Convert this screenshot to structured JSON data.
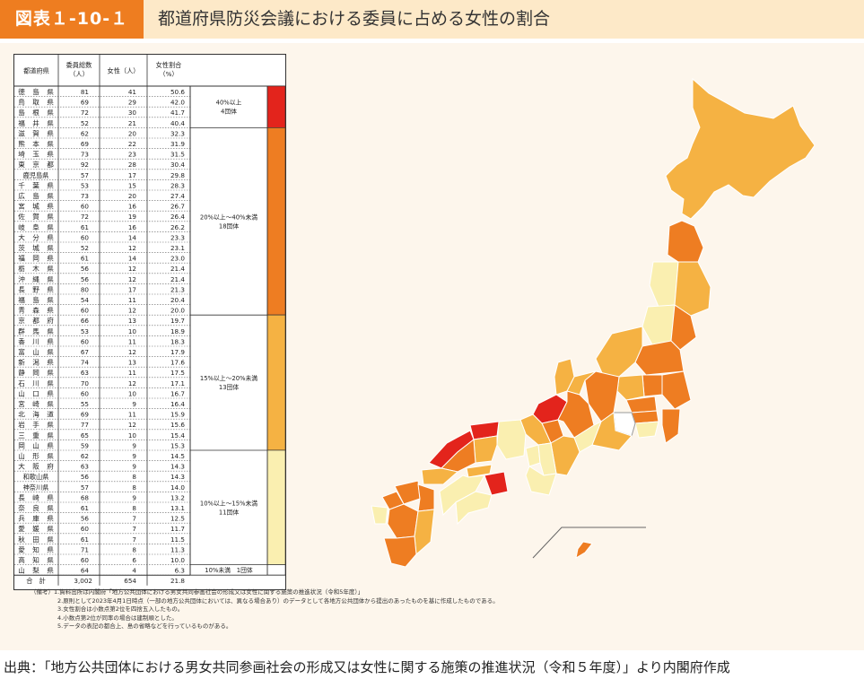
{
  "figure": {
    "label": "図表１-10-１",
    "title": "都道府県防災会議における委員に占める女性の割合"
  },
  "table": {
    "headers": [
      "都道府県",
      "委員総数\n（人）",
      "女性（人）",
      "女性割合\n（%）"
    ],
    "rows": [
      [
        "徳島県",
        "81",
        "41",
        "50.6"
      ],
      [
        "鳥取県",
        "69",
        "29",
        "42.0"
      ],
      [
        "島根県",
        "72",
        "30",
        "41.7"
      ],
      [
        "福井県",
        "52",
        "21",
        "40.4"
      ],
      [
        "滋賀県",
        "62",
        "20",
        "32.3"
      ],
      [
        "熊本県",
        "69",
        "22",
        "31.9"
      ],
      [
        "埼玉県",
        "73",
        "23",
        "31.5"
      ],
      [
        "東京都",
        "92",
        "28",
        "30.4"
      ],
      [
        "鹿児島県",
        "57",
        "17",
        "29.8"
      ],
      [
        "千葉県",
        "53",
        "15",
        "28.3"
      ],
      [
        "広島県",
        "73",
        "20",
        "27.4"
      ],
      [
        "宮城県",
        "60",
        "16",
        "26.7"
      ],
      [
        "佐賀県",
        "72",
        "19",
        "26.4"
      ],
      [
        "岐阜県",
        "61",
        "16",
        "26.2"
      ],
      [
        "大分県",
        "60",
        "14",
        "23.3"
      ],
      [
        "茨城県",
        "52",
        "12",
        "23.1"
      ],
      [
        "福岡県",
        "61",
        "14",
        "23.0"
      ],
      [
        "栃木県",
        "56",
        "12",
        "21.4"
      ],
      [
        "沖縄県",
        "56",
        "12",
        "21.4"
      ],
      [
        "長野県",
        "80",
        "17",
        "21.3"
      ],
      [
        "福島県",
        "54",
        "11",
        "20.4"
      ],
      [
        "青森県",
        "60",
        "12",
        "20.0"
      ],
      [
        "京都府",
        "66",
        "13",
        "19.7"
      ],
      [
        "群馬県",
        "53",
        "10",
        "18.9"
      ],
      [
        "香川県",
        "60",
        "11",
        "18.3"
      ],
      [
        "富山県",
        "67",
        "12",
        "17.9"
      ],
      [
        "新潟県",
        "74",
        "13",
        "17.6"
      ],
      [
        "静岡県",
        "63",
        "11",
        "17.5"
      ],
      [
        "石川県",
        "70",
        "12",
        "17.1"
      ],
      [
        "山口県",
        "60",
        "10",
        "16.7"
      ],
      [
        "宮崎県",
        "55",
        "9",
        "16.4"
      ],
      [
        "北海道",
        "69",
        "11",
        "15.9"
      ],
      [
        "岩手県",
        "77",
        "12",
        "15.6"
      ],
      [
        "三重県",
        "65",
        "10",
        "15.4"
      ],
      [
        "岡山県",
        "59",
        "9",
        "15.3"
      ],
      [
        "山形県",
        "62",
        "9",
        "14.5"
      ],
      [
        "大阪府",
        "63",
        "9",
        "14.3"
      ],
      [
        "和歌山県",
        "56",
        "8",
        "14.3"
      ],
      [
        "神奈川県",
        "57",
        "8",
        "14.0"
      ],
      [
        "長崎県",
        "68",
        "9",
        "13.2"
      ],
      [
        "奈良県",
        "61",
        "8",
        "13.1"
      ],
      [
        "兵庫県",
        "56",
        "7",
        "12.5"
      ],
      [
        "愛媛県",
        "60",
        "7",
        "11.7"
      ],
      [
        "秋田県",
        "61",
        "7",
        "11.5"
      ],
      [
        "愛知県",
        "71",
        "8",
        "11.3"
      ],
      [
        "高知県",
        "60",
        "6",
        "10.0"
      ],
      [
        "山梨県",
        "64",
        "4",
        "6.3"
      ]
    ],
    "total": [
      "合　計",
      "3,002",
      "654",
      "21.8"
    ],
    "groups": [
      {
        "label": "40%以上\n4団体",
        "color": "#e3241c",
        "rows": 4
      },
      {
        "label": "20%以上～40%未満\n18団体",
        "color": "#ee7d22",
        "rows": 18
      },
      {
        "label": "15%以上～20%未満\n13団体",
        "color": "#f5b243",
        "rows": 13
      },
      {
        "label": "10%以上～15%未満\n11団体",
        "color": "#faefb0",
        "rows": 11
      },
      {
        "label": "10%未満　1団体",
        "color": "#ffffff",
        "rows": 1
      }
    ]
  },
  "notes": [
    "（備考）1.資料出所は内閣府「地方公共団体における男女共同参画社会の形成又は女性に関する施策の推進状況（令和5年度）」",
    "2.原則として2023年4月1日時点（一部の地方公共団体においては、異なる場合あり）のデータとして各地方公共団体から提出のあったものを基に作成したものである。",
    "3.女性割合は小数点第2位を四捨五入したもの。",
    "4.小数点第2位が同率の場合は建制順とした。",
    "5.データの表記の都合上、島の省略などを行っているものがある。"
  ],
  "source": "出典：「地方公共団体における男女共同参画社会の形成又は女性に関する施策の推進状況（令和５年度）」より内閣府作成",
  "colors": {
    "accent": "#ee7d20",
    "title_band": "#fde9c8",
    "panel": "#fdf6ec",
    "level_40": "#e3241c",
    "level_20": "#ee7d22",
    "level_15": "#f5b243",
    "level_10": "#faefb0"
  }
}
